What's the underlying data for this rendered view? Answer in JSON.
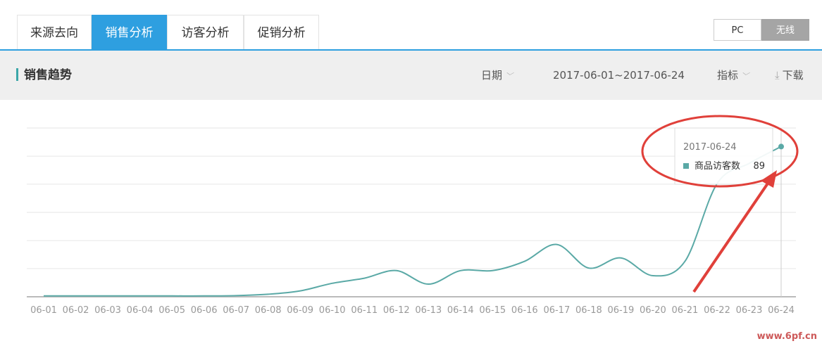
{
  "tabs": [
    "来源去向",
    "销售分析",
    "访客分析",
    "促销分析"
  ],
  "active_tab": 1,
  "toggle": [
    "PC",
    "无线"
  ],
  "active_toggle": 1,
  "panel": {
    "title": "销售趋势",
    "date_label": "日期",
    "date_range": "2017-06-01~2017-06-24",
    "metric_label": "指标",
    "download": "下载"
  },
  "chart_data": {
    "type": "line",
    "categories": [
      "06-01",
      "06-02",
      "06-03",
      "06-04",
      "06-05",
      "06-06",
      "06-07",
      "06-08",
      "06-09",
      "06-10",
      "06-11",
      "06-12",
      "06-13",
      "06-14",
      "06-15",
      "06-16",
      "06-17",
      "06-18",
      "06-19",
      "06-20",
      "06-21",
      "06-22",
      "06-23",
      "06-24"
    ],
    "series": [
      {
        "name": "商品访客数",
        "color": "#5aa9a6",
        "values": [
          0.5,
          0.5,
          0.5,
          0.5,
          0.5,
          0.5,
          0.7,
          1.5,
          3.5,
          8,
          11,
          15.5,
          7.5,
          15.5,
          15.5,
          21,
          31,
          17,
          23,
          12.5,
          21,
          67,
          79,
          89
        ]
      }
    ],
    "ylim": [
      0,
      100
    ],
    "yticks": [
      0,
      16.7,
      33.3,
      50,
      66.7,
      83.3,
      100
    ],
    "grid": true
  },
  "tooltip": {
    "date": "2017-06-24",
    "index": 23
  },
  "watermark": "www.6pf.cn"
}
